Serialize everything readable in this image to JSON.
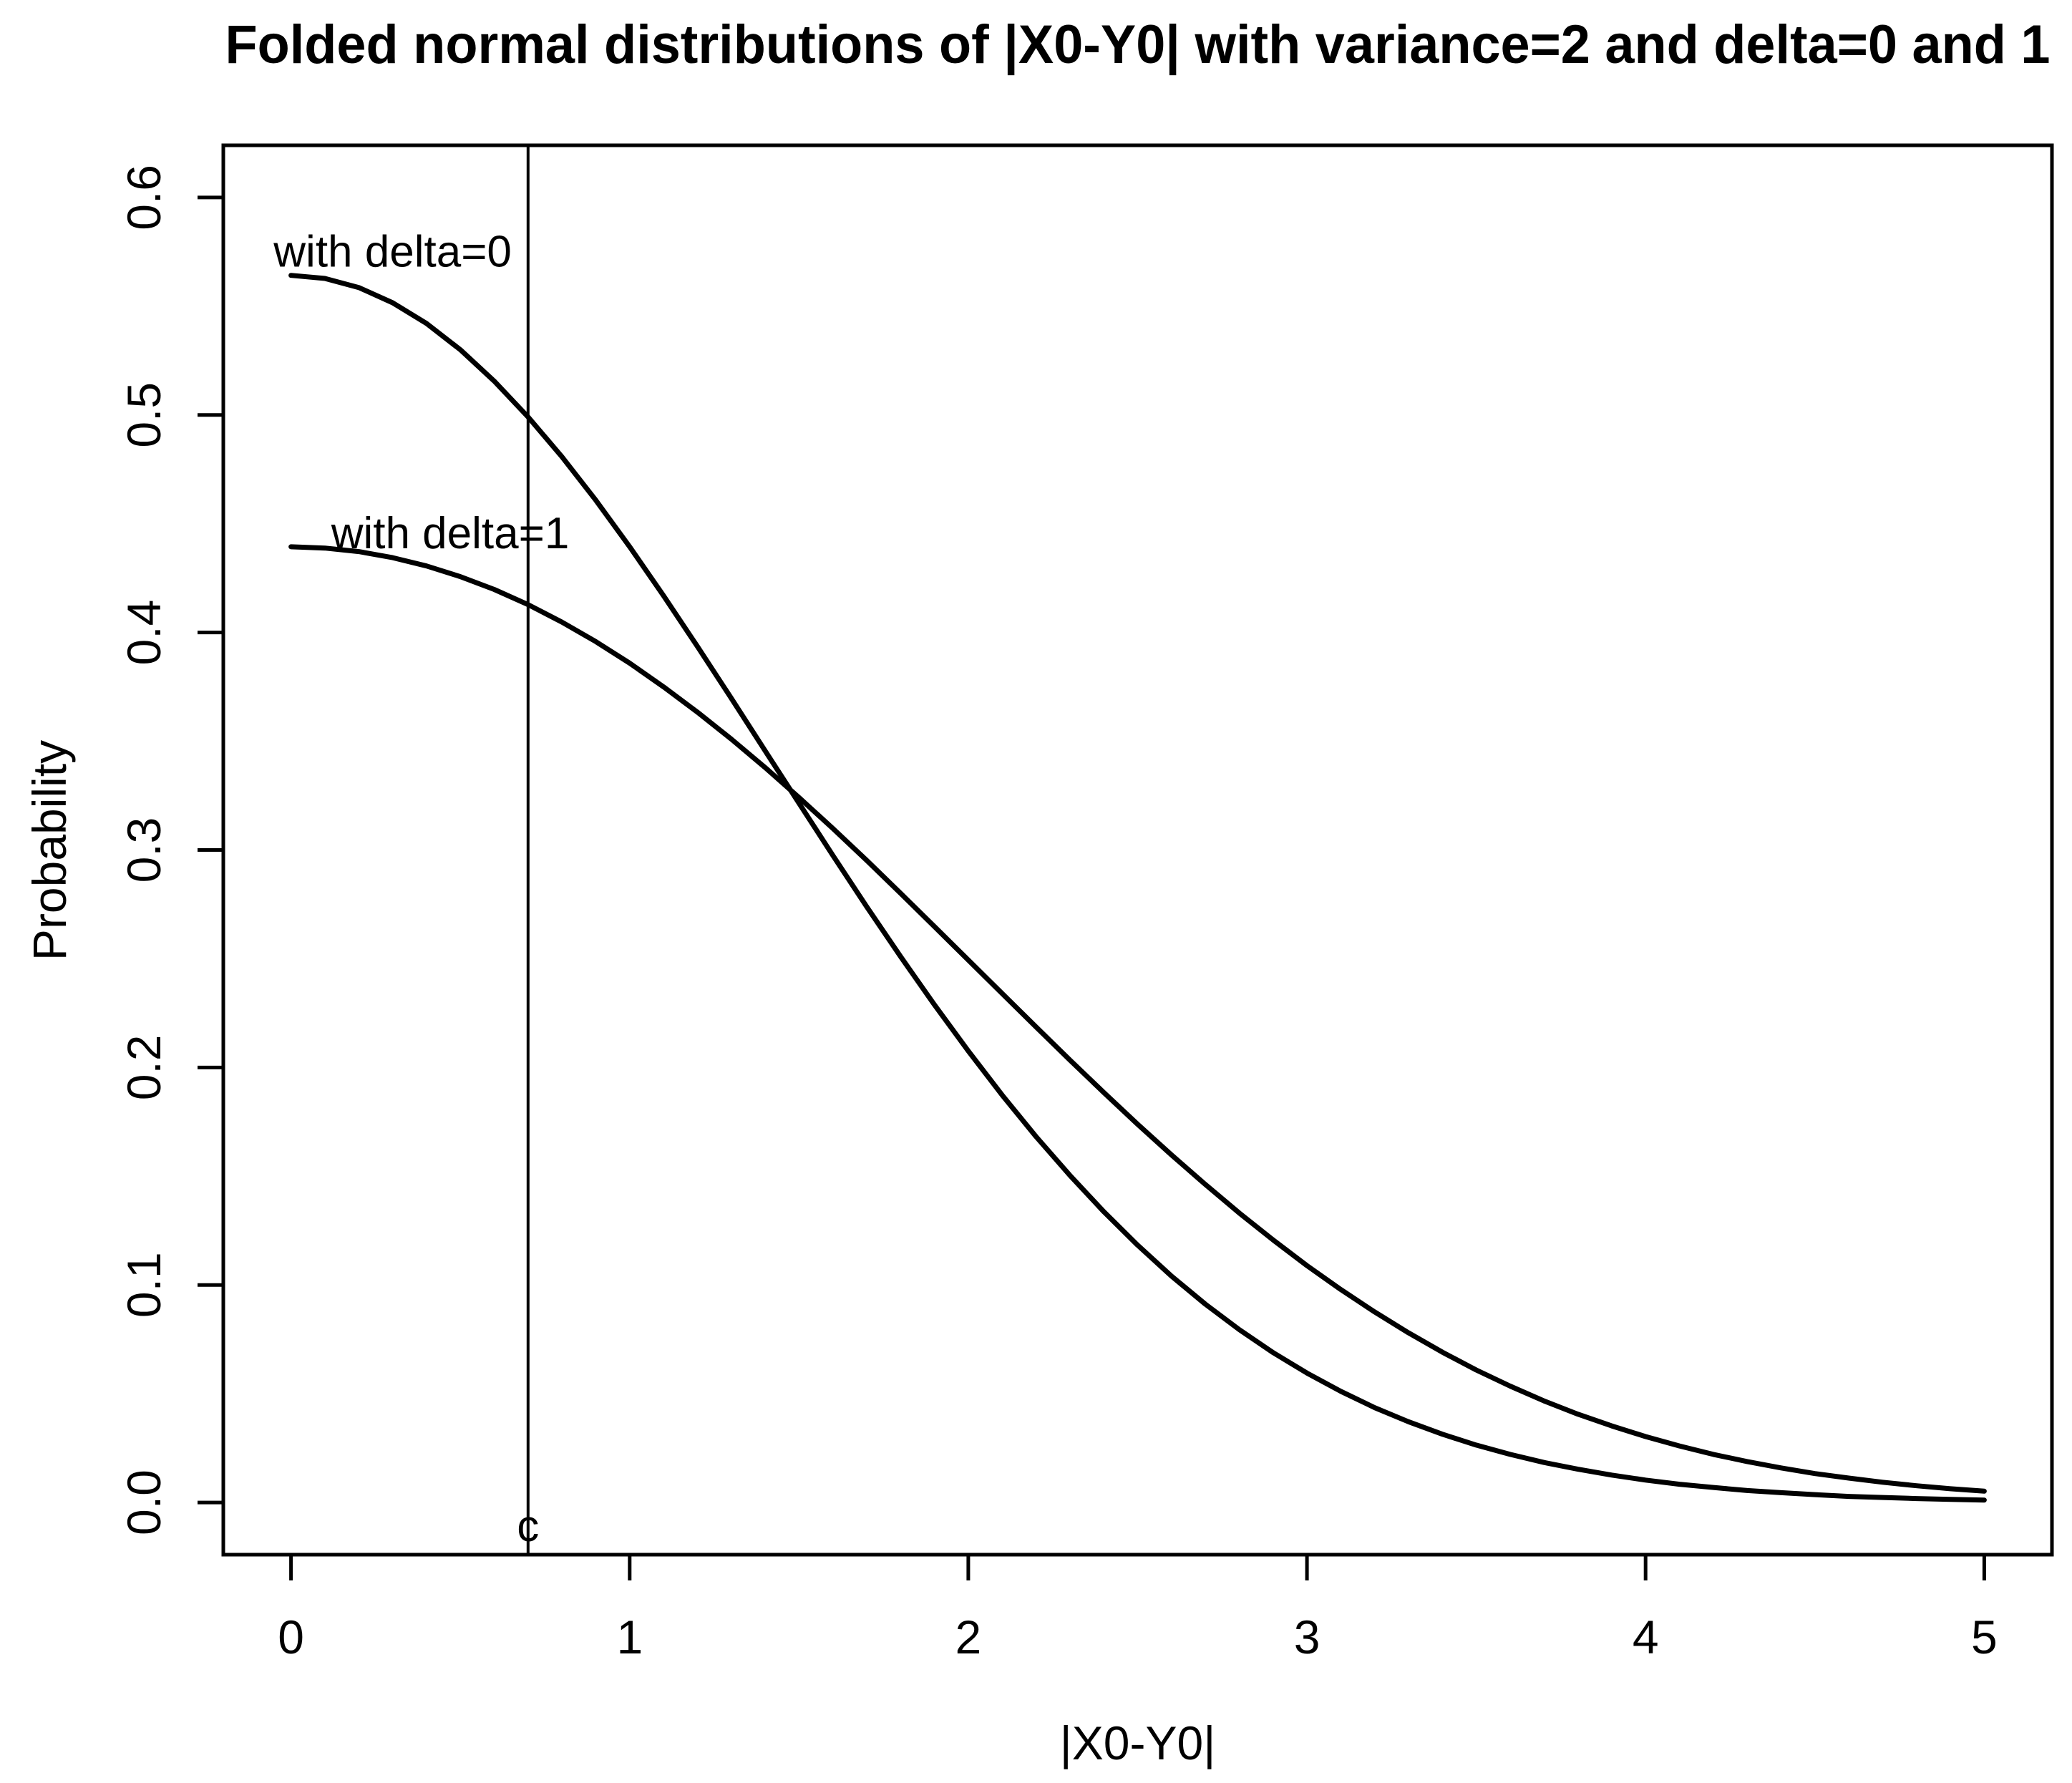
{
  "chart_data": {
    "type": "line",
    "title": "Folded normal distributions of |X0-Y0| with variance=2 and delta=0 and 1",
    "xlabel": "|X0-Y0|",
    "ylabel": "Probability",
    "xlim": [
      -0.2,
      5.2
    ],
    "ylim": [
      -0.024,
      0.624
    ],
    "grid": false,
    "legend_position": "none",
    "line_color": "#000000",
    "background": "#ffffff",
    "x_ticks": {
      "values": [
        0,
        1,
        2,
        3,
        4,
        5
      ],
      "labels": [
        "0",
        "1",
        "2",
        "3",
        "4",
        "5"
      ]
    },
    "y_ticks": {
      "values": [
        0.0,
        0.1,
        0.2,
        0.3,
        0.4,
        0.5,
        0.6
      ],
      "labels": [
        "0.0",
        "0.1",
        "0.2",
        "0.3",
        "0.4",
        "0.5",
        "0.6"
      ]
    },
    "x": [
      0,
      0.1,
      0.2,
      0.3,
      0.4,
      0.5,
      0.6,
      0.7,
      0.8,
      0.9,
      1,
      1.1,
      1.2,
      1.3,
      1.4,
      1.5,
      1.6,
      1.7,
      1.8,
      1.9,
      2,
      2.1,
      2.2,
      2.3,
      2.4,
      2.5,
      2.6,
      2.7,
      2.8,
      2.9,
      3,
      3.1,
      3.2,
      3.3,
      3.4,
      3.5,
      3.6,
      3.7,
      3.8,
      3.9,
      4,
      4.1,
      4.2,
      4.3,
      4.4,
      4.5,
      4.6,
      4.7,
      4.8,
      4.9,
      5
    ],
    "series": [
      {
        "name": "with delta=0",
        "values": [
          0.5642,
          0.5628,
          0.5586,
          0.5516,
          0.5421,
          0.53,
          0.5156,
          0.4991,
          0.4808,
          0.4608,
          0.4394,
          0.4169,
          0.3936,
          0.3698,
          0.3456,
          0.3215,
          0.2975,
          0.2739,
          0.251,
          0.2288,
          0.2076,
          0.1873,
          0.1682,
          0.1504,
          0.1337,
          0.1183,
          0.1041,
          0.0912,
          0.0795,
          0.0689,
          0.0595,
          0.0511,
          0.0436,
          0.0371,
          0.0314,
          0.0264,
          0.0221,
          0.0184,
          0.0153,
          0.0126,
          0.0103,
          0.0084,
          0.0069,
          0.0055,
          0.0045,
          0.0036,
          0.0028,
          0.0023,
          0.0018,
          0.0014,
          0.0011
        ]
      },
      {
        "name": "with delta=1",
        "values": [
          0.4394,
          0.4388,
          0.4372,
          0.4344,
          0.4306,
          0.4257,
          0.4198,
          0.4128,
          0.4048,
          0.3958,
          0.3859,
          0.375,
          0.3634,
          0.351,
          0.3379,
          0.3241,
          0.3099,
          0.2952,
          0.2801,
          0.2648,
          0.2494,
          0.234,
          0.2186,
          0.2034,
          0.1885,
          0.1739,
          0.1598,
          0.1462,
          0.1331,
          0.1207,
          0.1089,
          0.0979,
          0.0876,
          0.078,
          0.0691,
          0.0609,
          0.0535,
          0.0467,
          0.0406,
          0.0352,
          0.0303,
          0.026,
          0.0221,
          0.0188,
          0.0159,
          0.0133,
          0.0112,
          0.0093,
          0.0077,
          0.0063,
          0.0052
        ]
      }
    ],
    "annotations": [
      {
        "text": "with delta=0",
        "x": 0.3,
        "y": 0.575
      },
      {
        "text": "with delta=1",
        "x": 0.47,
        "y": 0.4455
      }
    ],
    "vline": {
      "x": 0.7,
      "label": "c"
    }
  }
}
